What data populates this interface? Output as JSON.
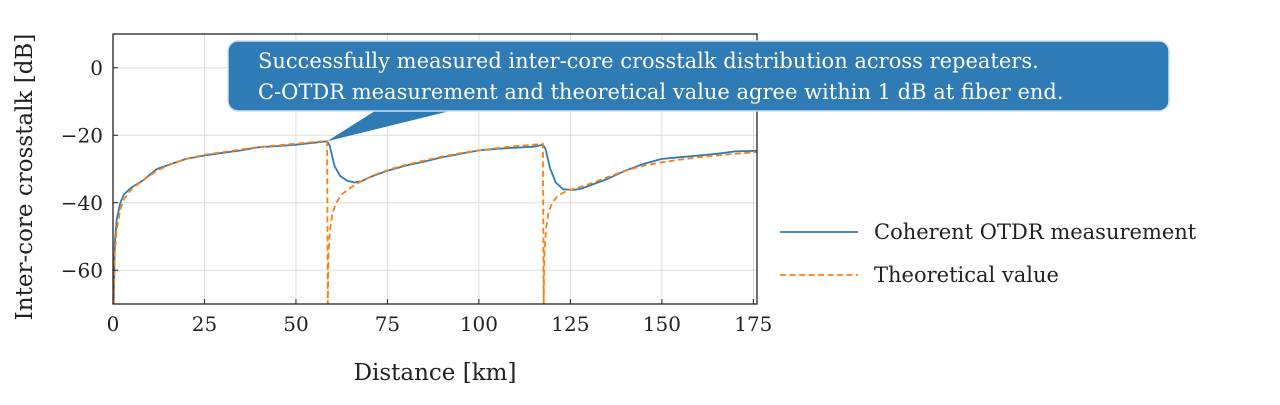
{
  "chart_data": {
    "type": "line",
    "xlabel": "Distance [km]",
    "ylabel": "Inter-core crosstalk [dB]",
    "xlim": [
      0,
      176
    ],
    "ylim": [
      -70,
      10
    ],
    "xticks": [
      0,
      25,
      50,
      75,
      100,
      125,
      150,
      175
    ],
    "yticks": [
      0,
      -20,
      -40,
      -60
    ],
    "xtick_labels": [
      "0",
      "25",
      "50",
      "75",
      "100",
      "125",
      "150",
      "175"
    ],
    "ytick_labels": [
      "0",
      "−20",
      "−40",
      "−60"
    ],
    "grid": true,
    "legend_position": "right, outside plot",
    "series": [
      {
        "name": "Coherent OTDR measurement",
        "color": "#2f7bb6",
        "style": "solid",
        "points": [
          [
            0.2,
            -70
          ],
          [
            0.5,
            -52
          ],
          [
            1,
            -45
          ],
          [
            2,
            -40
          ],
          [
            3,
            -37.5
          ],
          [
            5,
            -35.5
          ],
          [
            8,
            -33.5
          ],
          [
            12,
            -30
          ],
          [
            16,
            -28.5
          ],
          [
            20,
            -27
          ],
          [
            25,
            -26
          ],
          [
            30,
            -25.2
          ],
          [
            35,
            -24.5
          ],
          [
            40,
            -23.5
          ],
          [
            45,
            -23.2
          ],
          [
            50,
            -22.8
          ],
          [
            55,
            -22.2
          ],
          [
            58.5,
            -21.8
          ],
          [
            59.2,
            -23
          ],
          [
            60.5,
            -29
          ],
          [
            62,
            -32
          ],
          [
            64,
            -33.5
          ],
          [
            66,
            -34
          ],
          [
            68,
            -33.6
          ],
          [
            70,
            -32.5
          ],
          [
            75,
            -30.5
          ],
          [
            80,
            -29
          ],
          [
            85,
            -27.8
          ],
          [
            90,
            -26.5
          ],
          [
            95,
            -25.5
          ],
          [
            100,
            -24.5
          ],
          [
            105,
            -24
          ],
          [
            110,
            -23.7
          ],
          [
            115,
            -23.4
          ],
          [
            117.5,
            -22.8
          ],
          [
            118.2,
            -24
          ],
          [
            119.5,
            -30
          ],
          [
            121,
            -34
          ],
          [
            123,
            -36
          ],
          [
            126,
            -36.2
          ],
          [
            128,
            -35.8
          ],
          [
            130,
            -35
          ],
          [
            135,
            -33
          ],
          [
            140,
            -30.5
          ],
          [
            145,
            -28.5
          ],
          [
            150,
            -27
          ],
          [
            155,
            -26.5
          ],
          [
            160,
            -26
          ],
          [
            165,
            -25.5
          ],
          [
            170,
            -24.8
          ],
          [
            176,
            -24.6
          ]
        ]
      },
      {
        "name": "Theoretical value",
        "color": "#ff7f0e",
        "style": "dashed",
        "points": [
          [
            0.2,
            -70
          ],
          [
            0.5,
            -55
          ],
          [
            1,
            -48
          ],
          [
            2,
            -42
          ],
          [
            3,
            -39
          ],
          [
            5,
            -36
          ],
          [
            8,
            -33.5
          ],
          [
            12,
            -30.5
          ],
          [
            16,
            -28.5
          ],
          [
            20,
            -27
          ],
          [
            25,
            -25.8
          ],
          [
            30,
            -25
          ],
          [
            35,
            -24.2
          ],
          [
            40,
            -23.5
          ],
          [
            45,
            -23
          ],
          [
            50,
            -22.5
          ],
          [
            55,
            -22
          ],
          [
            58.5,
            -21.7
          ],
          [
            58.7,
            -70
          ],
          [
            58.9,
            -55
          ],
          [
            59.3,
            -48
          ],
          [
            60,
            -43
          ],
          [
            61,
            -40
          ],
          [
            62.5,
            -37.5
          ],
          [
            65,
            -35.5
          ],
          [
            68,
            -33.5
          ],
          [
            72,
            -31.5
          ],
          [
            76,
            -30
          ],
          [
            80,
            -28.8
          ],
          [
            85,
            -27.5
          ],
          [
            90,
            -26.3
          ],
          [
            95,
            -25.3
          ],
          [
            100,
            -24.5
          ],
          [
            105,
            -23.8
          ],
          [
            110,
            -23.2
          ],
          [
            115,
            -22.8
          ],
          [
            117.5,
            -22.5
          ],
          [
            117.7,
            -70
          ],
          [
            117.9,
            -55
          ],
          [
            118.3,
            -48
          ],
          [
            119,
            -43
          ],
          [
            120,
            -40
          ],
          [
            121.5,
            -38
          ],
          [
            124,
            -36.5
          ],
          [
            127,
            -35.5
          ],
          [
            130,
            -34.5
          ],
          [
            135,
            -32.5
          ],
          [
            140,
            -30.5
          ],
          [
            145,
            -29
          ],
          [
            150,
            -28
          ],
          [
            155,
            -27.2
          ],
          [
            160,
            -26.5
          ],
          [
            165,
            -26
          ],
          [
            170,
            -25.5
          ],
          [
            176,
            -25
          ]
        ]
      }
    ],
    "annotation": {
      "lines": [
        "Successfully measured inter-core crosstalk distribution across repeaters.",
        "C-OTDR measurement and theoretical value agree within 1 dB at fiber end."
      ],
      "box_color": "#2e7bb5",
      "text_color": "#ffffff",
      "pointer_target": [
        58.5,
        -21.8
      ]
    }
  }
}
